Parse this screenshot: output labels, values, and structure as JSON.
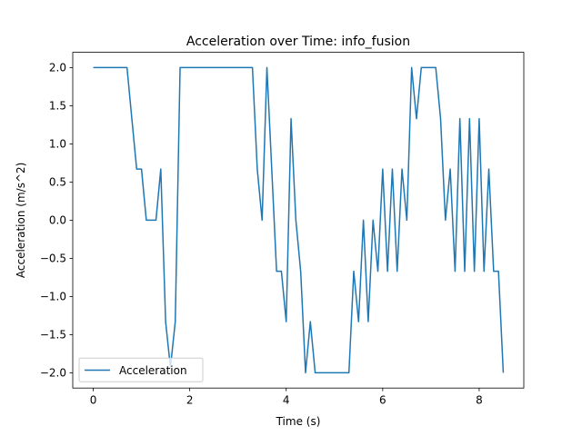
{
  "chart_data": {
    "type": "line",
    "title": "Acceleration over Time: info_fusion",
    "xlabel": "Time (s)",
    "ylabel": "Acceleration (m/s^2)",
    "xlim": [
      -0.425,
      8.925
    ],
    "ylim": [
      -2.2,
      2.2
    ],
    "xticks": [
      0,
      2,
      4,
      6,
      8
    ],
    "xtick_labels": [
      "0",
      "2",
      "4",
      "6",
      "8"
    ],
    "yticks": [
      -2.0,
      -1.5,
      -1.0,
      -0.5,
      0.0,
      0.5,
      1.0,
      1.5,
      2.0
    ],
    "ytick_labels": [
      "−2.0",
      "−1.5",
      "−1.0",
      "−0.5",
      "0.0",
      "0.5",
      "1.0",
      "1.5",
      "2.0"
    ],
    "grid": false,
    "legend_position": "lower-left",
    "series": [
      {
        "name": "Acceleration",
        "color": "#1f77b4",
        "x": [
          0,
          0.1,
          0.2,
          0.3,
          0.4,
          0.5,
          0.6,
          0.7,
          0.8,
          0.9,
          1.0,
          1.1,
          1.2,
          1.3,
          1.4,
          1.5,
          1.6,
          1.7,
          1.8,
          1.9,
          2.0,
          2.1,
          2.2,
          2.3,
          2.4,
          2.5,
          2.6,
          2.7,
          2.8,
          2.9,
          3.0,
          3.1,
          3.2,
          3.3,
          3.4,
          3.5,
          3.6,
          3.7,
          3.8,
          3.9,
          4.0,
          4.1,
          4.2,
          4.3,
          4.4,
          4.5,
          4.6,
          4.7,
          4.8,
          4.9,
          5.0,
          5.1,
          5.2,
          5.3,
          5.4,
          5.5,
          5.6,
          5.7,
          5.8,
          5.9,
          6.0,
          6.1,
          6.2,
          6.3,
          6.4,
          6.5,
          6.6,
          6.7,
          6.8,
          6.9,
          7.0,
          7.1,
          7.2,
          7.3,
          7.4,
          7.5,
          7.6,
          7.7,
          7.8,
          7.9,
          8.0,
          8.1,
          8.2,
          8.3,
          8.4,
          8.5
        ],
        "y": [
          2.0,
          2.0,
          2.0,
          2.0,
          2.0,
          2.0,
          2.0,
          2.0,
          1.33,
          0.67,
          0.67,
          0.0,
          0.0,
          0.0,
          0.67,
          -1.33,
          -1.93,
          -1.33,
          2.0,
          2.0,
          2.0,
          2.0,
          2.0,
          2.0,
          2.0,
          2.0,
          2.0,
          2.0,
          2.0,
          2.0,
          2.0,
          2.0,
          2.0,
          2.0,
          0.67,
          0.0,
          2.0,
          0.67,
          -0.67,
          -0.67,
          -1.33,
          1.33,
          0.0,
          -0.67,
          -2.0,
          -1.33,
          -2.0,
          -2.0,
          -2.0,
          -2.0,
          -2.0,
          -2.0,
          -2.0,
          -2.0,
          -0.67,
          -1.33,
          0.0,
          -1.33,
          0.0,
          -0.67,
          0.67,
          -0.67,
          0.67,
          -0.67,
          0.67,
          0.0,
          2.0,
          1.33,
          2.0,
          2.0,
          2.0,
          2.0,
          1.33,
          0.0,
          0.67,
          -0.67,
          1.33,
          -0.67,
          1.33,
          -0.67,
          1.33,
          -0.67,
          0.67,
          -0.67,
          -0.67,
          -2.0
        ]
      }
    ]
  }
}
